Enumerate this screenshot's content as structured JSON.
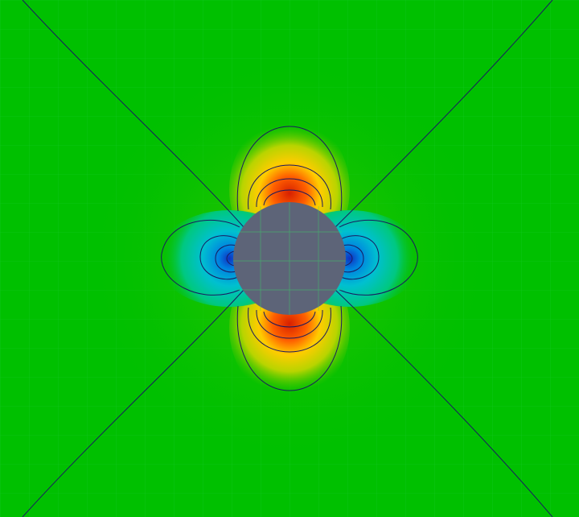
{
  "plot": {
    "type": "contour-field",
    "obstacle": "circle",
    "colormap": [
      "#1030c0",
      "#00a0e0",
      "#00d0a0",
      "#00c000",
      "#9acd00",
      "#ffcc00",
      "#ff7a00",
      "#d82000"
    ],
    "colors": {
      "background": "#00c000",
      "obstacle": "#5d6478",
      "contour": "#1a1a60",
      "mesh": "#3ad66a"
    },
    "grid": true
  }
}
